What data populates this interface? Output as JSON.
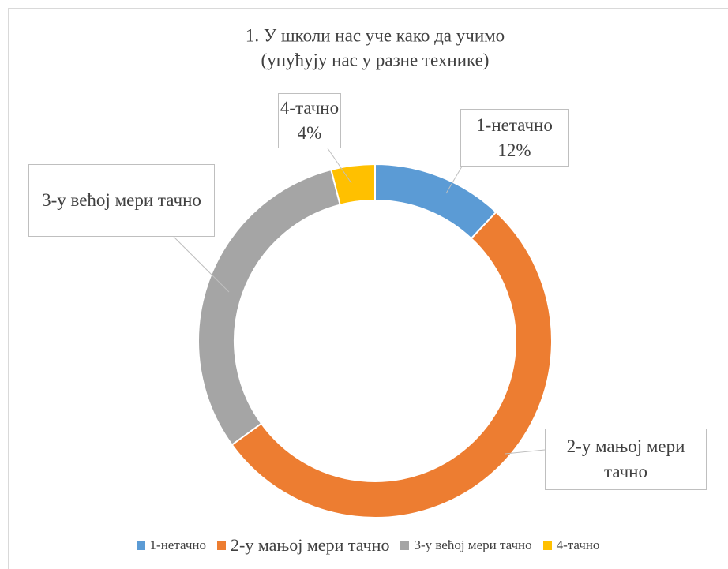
{
  "chart_data": {
    "type": "donut",
    "title": [
      "1. У школи нас уче како да учимо",
      "(упућују нас у разне технике)"
    ],
    "categories": [
      "1-нетачно",
      "2-у мањој мери тачно",
      "3-у већој мери тачно",
      "4-тачно"
    ],
    "values": [
      12,
      53,
      31,
      4
    ],
    "value_labels": [
      "12%",
      null,
      null,
      "4%"
    ],
    "colors": [
      "#5b9bd5",
      "#ed7d31",
      "#a5a5a5",
      "#ffc000"
    ],
    "legend": "bottom"
  }
}
